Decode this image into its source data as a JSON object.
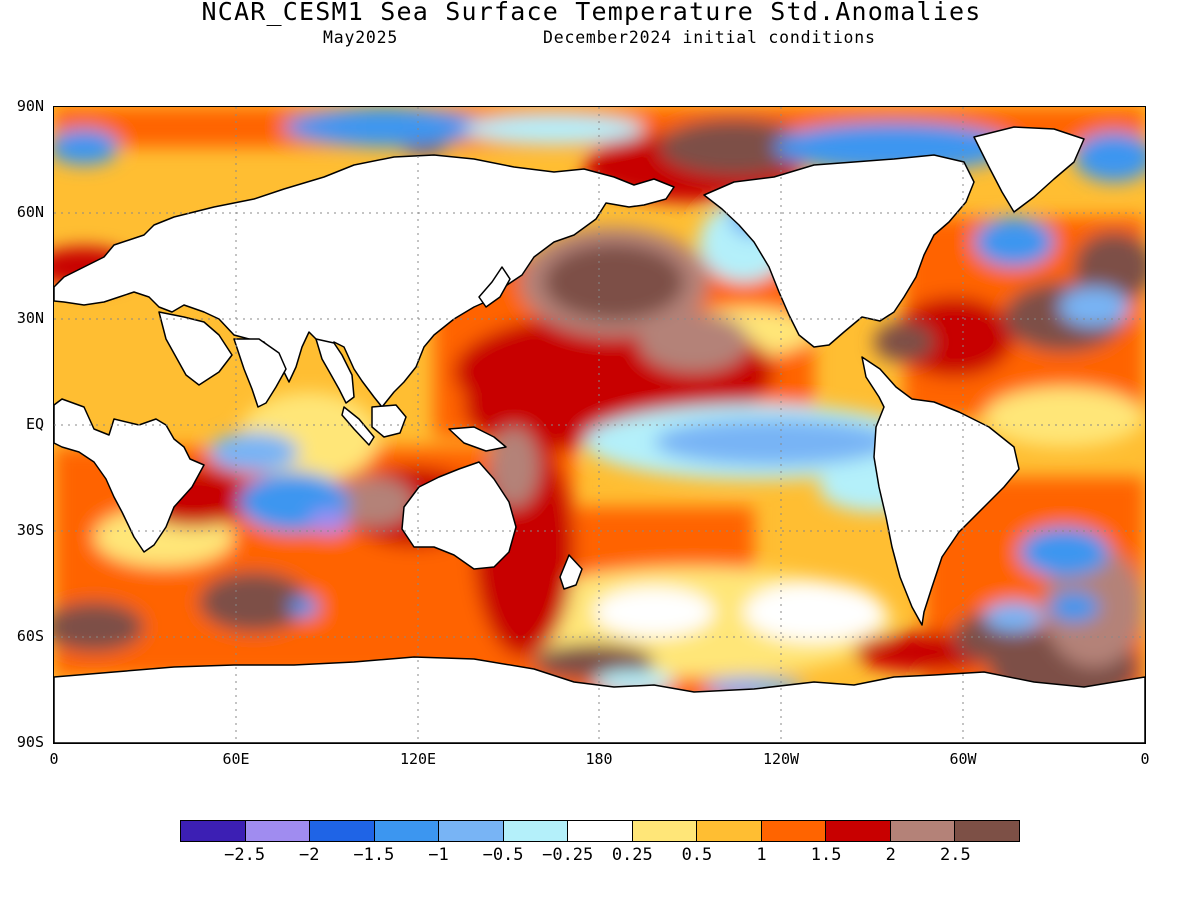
{
  "title": "NCAR_CESM1 Sea Surface Temperature Std.Anomalies",
  "subtitle_left": "May2025",
  "subtitle_right": "December2024 initial conditions",
  "map": {
    "lat_labels": [
      "90N",
      "60N",
      "30N",
      "EQ",
      "30S",
      "60S",
      "90S"
    ],
    "lon_labels": [
      "0",
      "60E",
      "120E",
      "180",
      "120W",
      "60W",
      "0"
    ],
    "gridlines": "dotted",
    "land_color": "#ffffff"
  },
  "colorbar": {
    "colors": [
      "#3c1fb4",
      "#a08cf0",
      "#1f64e6",
      "#3c96f0",
      "#78b4f5",
      "#b4f0fa",
      "#ffffff",
      "#ffe678",
      "#ffbe32",
      "#ff6400",
      "#c80000",
      "#b48278",
      "#7d5046"
    ],
    "labels": [
      "−2.5",
      "−2",
      "−1.5",
      "−1",
      "−0.5",
      "−0.25",
      "0.25",
      "0.5",
      "1",
      "1.5",
      "2",
      "2.5"
    ]
  }
}
